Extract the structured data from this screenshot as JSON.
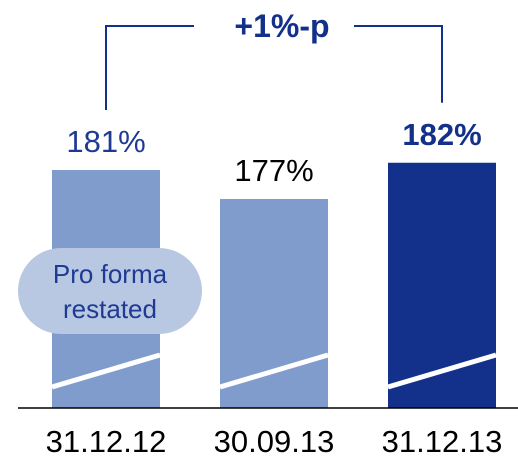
{
  "chart_data": {
    "type": "bar",
    "categories": [
      "31.12.12",
      "30.09.13",
      "31.12.13"
    ],
    "values": [
      181,
      177,
      182
    ],
    "value_labels": [
      "181%",
      "177%",
      "182%"
    ],
    "label_colors": [
      "#1f3a93",
      "#000000",
      "#13318a"
    ],
    "label_bold": [
      false,
      false,
      true
    ],
    "bar_colors": [
      "#7f9ccd",
      "#7f9ccd",
      "#13318a"
    ],
    "unit": "%",
    "ylim": [
      0,
      200
    ],
    "grid": false,
    "annotation": {
      "text": "+1%-p",
      "color": "#13318a",
      "bracket_color": "#13318a",
      "from_category": "31.12.12",
      "to_category": "31.12.13"
    },
    "badge": {
      "lines": [
        "Pro forma",
        "restated"
      ],
      "fill": "#b8c8e2",
      "text_color": "#1f3a93",
      "category": "31.12.12"
    }
  }
}
